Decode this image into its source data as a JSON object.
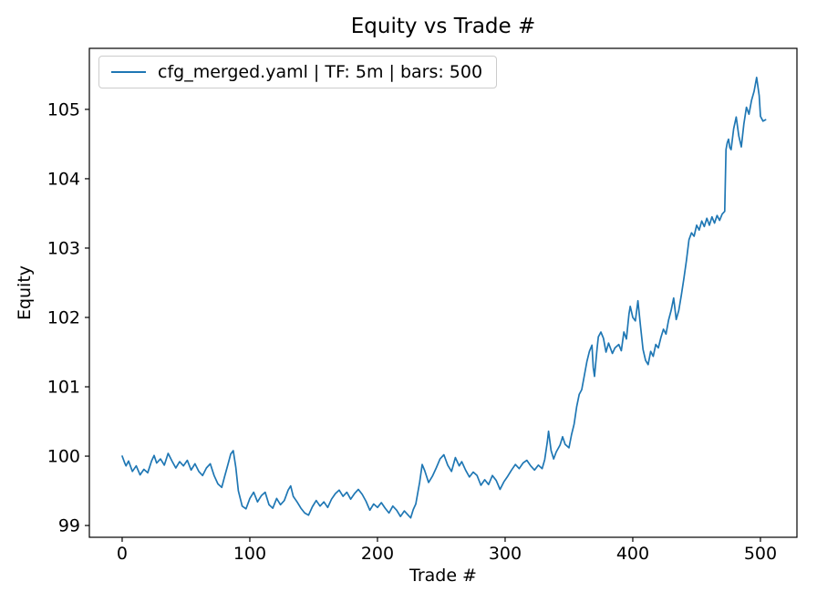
{
  "figure": {
    "background": "#ffffff"
  },
  "chart_data": {
    "type": "line",
    "title": "Equity vs Trade #",
    "xlabel": "Trade #",
    "ylabel": "Equity",
    "xlim": [
      -25.7,
      528.6
    ],
    "ylim": [
      98.83,
      105.88
    ],
    "xticks": [
      0,
      100,
      200,
      300,
      400,
      500
    ],
    "yticks": [
      99,
      100,
      101,
      102,
      103,
      104,
      105
    ],
    "grid": false,
    "legend_position": "upper-left",
    "series": [
      {
        "name": "cfg_merged.yaml | TF: 5m | bars: 500",
        "color": "#1f77b4",
        "points": [
          [
            0,
            100.0
          ],
          [
            2,
            99.9
          ],
          [
            3,
            99.86
          ],
          [
            5,
            99.93
          ],
          [
            8,
            99.78
          ],
          [
            11,
            99.86
          ],
          [
            14,
            99.73
          ],
          [
            17,
            99.81
          ],
          [
            20,
            99.76
          ],
          [
            23,
            99.93
          ],
          [
            25,
            100.01
          ],
          [
            27,
            99.9
          ],
          [
            30,
            99.96
          ],
          [
            33,
            99.87
          ],
          [
            36,
            100.04
          ],
          [
            39,
            99.93
          ],
          [
            42,
            99.83
          ],
          [
            45,
            99.92
          ],
          [
            48,
            99.86
          ],
          [
            51,
            99.94
          ],
          [
            54,
            99.8
          ],
          [
            57,
            99.89
          ],
          [
            60,
            99.78
          ],
          [
            63,
            99.72
          ],
          [
            66,
            99.83
          ],
          [
            69,
            99.89
          ],
          [
            72,
            99.72
          ],
          [
            75,
            99.6
          ],
          [
            78,
            99.55
          ],
          [
            80,
            99.69
          ],
          [
            83,
            99.89
          ],
          [
            85,
            100.03
          ],
          [
            87,
            100.08
          ],
          [
            89,
            99.84
          ],
          [
            91,
            99.5
          ],
          [
            94,
            99.28
          ],
          [
            97,
            99.24
          ],
          [
            100,
            99.39
          ],
          [
            103,
            99.48
          ],
          [
            106,
            99.34
          ],
          [
            109,
            99.43
          ],
          [
            112,
            99.48
          ],
          [
            115,
            99.3
          ],
          [
            118,
            99.25
          ],
          [
            121,
            99.39
          ],
          [
            124,
            99.3
          ],
          [
            127,
            99.36
          ],
          [
            130,
            99.51
          ],
          [
            132,
            99.57
          ],
          [
            134,
            99.42
          ],
          [
            137,
            99.34
          ],
          [
            140,
            99.25
          ],
          [
            143,
            99.18
          ],
          [
            146,
            99.15
          ],
          [
            149,
            99.27
          ],
          [
            152,
            99.36
          ],
          [
            155,
            99.28
          ],
          [
            158,
            99.34
          ],
          [
            161,
            99.26
          ],
          [
            164,
            99.38
          ],
          [
            167,
            99.46
          ],
          [
            170,
            99.51
          ],
          [
            173,
            99.42
          ],
          [
            176,
            99.48
          ],
          [
            179,
            99.38
          ],
          [
            182,
            99.46
          ],
          [
            185,
            99.52
          ],
          [
            188,
            99.45
          ],
          [
            191,
            99.35
          ],
          [
            194,
            99.22
          ],
          [
            197,
            99.31
          ],
          [
            200,
            99.26
          ],
          [
            203,
            99.33
          ],
          [
            206,
            99.25
          ],
          [
            209,
            99.18
          ],
          [
            212,
            99.28
          ],
          [
            215,
            99.22
          ],
          [
            218,
            99.13
          ],
          [
            221,
            99.21
          ],
          [
            224,
            99.15
          ],
          [
            226,
            99.11
          ],
          [
            228,
            99.23
          ],
          [
            230,
            99.31
          ],
          [
            233,
            99.62
          ],
          [
            235,
            99.88
          ],
          [
            237,
            99.79
          ],
          [
            240,
            99.62
          ],
          [
            243,
            99.71
          ],
          [
            246,
            99.83
          ],
          [
            249,
            99.96
          ],
          [
            252,
            100.02
          ],
          [
            255,
            99.87
          ],
          [
            258,
            99.78
          ],
          [
            261,
            99.98
          ],
          [
            264,
            99.86
          ],
          [
            266,
            99.92
          ],
          [
            269,
            99.8
          ],
          [
            272,
            99.7
          ],
          [
            275,
            99.77
          ],
          [
            278,
            99.72
          ],
          [
            281,
            99.58
          ],
          [
            284,
            99.66
          ],
          [
            287,
            99.59
          ],
          [
            290,
            99.72
          ],
          [
            293,
            99.65
          ],
          [
            296,
            99.52
          ],
          [
            299,
            99.63
          ],
          [
            302,
            99.71
          ],
          [
            305,
            99.8
          ],
          [
            308,
            99.88
          ],
          [
            311,
            99.82
          ],
          [
            314,
            99.9
          ],
          [
            317,
            99.94
          ],
          [
            320,
            99.86
          ],
          [
            323,
            99.8
          ],
          [
            326,
            99.87
          ],
          [
            329,
            99.82
          ],
          [
            331,
            99.95
          ],
          [
            333,
            100.2
          ],
          [
            334,
            100.36
          ],
          [
            336,
            100.08
          ],
          [
            338,
            99.96
          ],
          [
            340,
            100.06
          ],
          [
            343,
            100.16
          ],
          [
            345,
            100.28
          ],
          [
            347,
            100.17
          ],
          [
            350,
            100.12
          ],
          [
            352,
            100.31
          ],
          [
            354,
            100.46
          ],
          [
            356,
            100.71
          ],
          [
            358,
            100.89
          ],
          [
            360,
            100.96
          ],
          [
            362,
            101.16
          ],
          [
            364,
            101.36
          ],
          [
            366,
            101.51
          ],
          [
            368,
            101.6
          ],
          [
            369,
            101.28
          ],
          [
            370,
            101.15
          ],
          [
            372,
            101.55
          ],
          [
            373,
            101.72
          ],
          [
            375,
            101.79
          ],
          [
            377,
            101.7
          ],
          [
            379,
            101.5
          ],
          [
            381,
            101.63
          ],
          [
            384,
            101.48
          ],
          [
            386,
            101.56
          ],
          [
            389,
            101.61
          ],
          [
            391,
            101.52
          ],
          [
            393,
            101.79
          ],
          [
            395,
            101.69
          ],
          [
            397,
            102.05
          ],
          [
            398,
            102.16
          ],
          [
            400,
            102.0
          ],
          [
            402,
            101.95
          ],
          [
            404,
            102.24
          ],
          [
            406,
            101.88
          ],
          [
            408,
            101.54
          ],
          [
            410,
            101.38
          ],
          [
            412,
            101.32
          ],
          [
            414,
            101.51
          ],
          [
            416,
            101.44
          ],
          [
            418,
            101.61
          ],
          [
            420,
            101.56
          ],
          [
            422,
            101.71
          ],
          [
            424,
            101.83
          ],
          [
            426,
            101.76
          ],
          [
            428,
            101.96
          ],
          [
            430,
            102.1
          ],
          [
            432,
            102.28
          ],
          [
            434,
            101.97
          ],
          [
            436,
            102.1
          ],
          [
            438,
            102.32
          ],
          [
            440,
            102.56
          ],
          [
            442,
            102.82
          ],
          [
            444,
            103.12
          ],
          [
            446,
            103.22
          ],
          [
            448,
            103.17
          ],
          [
            450,
            103.33
          ],
          [
            452,
            103.26
          ],
          [
            454,
            103.39
          ],
          [
            456,
            103.31
          ],
          [
            458,
            103.43
          ],
          [
            460,
            103.33
          ],
          [
            462,
            103.45
          ],
          [
            464,
            103.36
          ],
          [
            466,
            103.47
          ],
          [
            468,
            103.4
          ],
          [
            470,
            103.49
          ],
          [
            472,
            103.53
          ],
          [
            473,
            104.42
          ],
          [
            474,
            104.52
          ],
          [
            475,
            104.57
          ],
          [
            476,
            104.45
          ],
          [
            477,
            104.42
          ],
          [
            479,
            104.72
          ],
          [
            481,
            104.89
          ],
          [
            483,
            104.62
          ],
          [
            485,
            104.46
          ],
          [
            487,
            104.79
          ],
          [
            489,
            105.03
          ],
          [
            491,
            104.93
          ],
          [
            493,
            105.13
          ],
          [
            495,
            105.26
          ],
          [
            497,
            105.46
          ],
          [
            499,
            105.2
          ],
          [
            500,
            104.9
          ],
          [
            502,
            104.83
          ],
          [
            504,
            104.85
          ]
        ]
      }
    ]
  }
}
